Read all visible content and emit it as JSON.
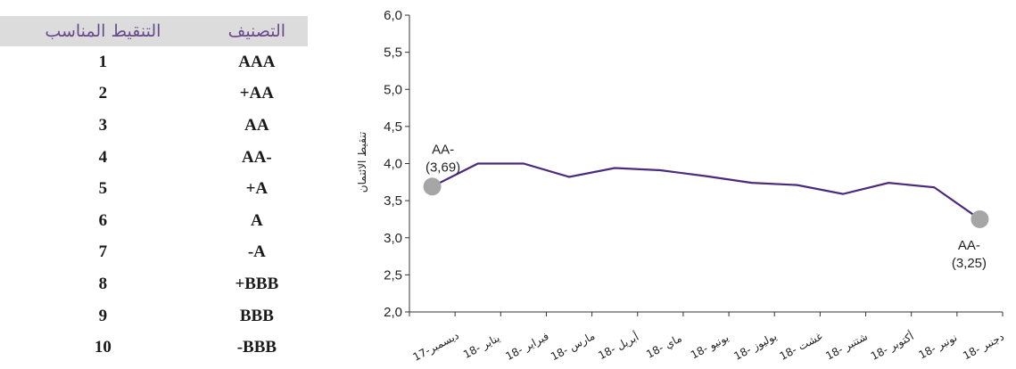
{
  "rating_table": {
    "headers": [
      "التنقيط المناسب",
      "التصنيف"
    ],
    "rows": [
      {
        "score": "1",
        "rating": "AAA"
      },
      {
        "score": "2",
        "rating": "+AA"
      },
      {
        "score": "3",
        "rating": "AA"
      },
      {
        "score": "4",
        "rating": "AA-"
      },
      {
        "score": "5",
        "rating": "+A"
      },
      {
        "score": "6",
        "rating": "A"
      },
      {
        "score": "7",
        "rating": "-A"
      },
      {
        "score": "8",
        "rating": "+BBB"
      },
      {
        "score": "9",
        "rating": "BBB"
      },
      {
        "score": "10",
        "rating": "-BBB"
      }
    ]
  },
  "chart_data": {
    "type": "line",
    "ylabel": "تنقيط الائتمان",
    "ylim": [
      2.0,
      6.0
    ],
    "yticks": [
      "2,0",
      "2,5",
      "3,0",
      "3,5",
      "4,0",
      "4,5",
      "5,0",
      "5,5",
      "6,0"
    ],
    "categories": [
      "ديسمبر-17",
      "يناير -18",
      "فبراير -18",
      "مارس -18",
      "أبريل -18",
      "ماي -18",
      "يونيو -18",
      "يوليوز -18",
      "غشت -18",
      "شتنبر -18",
      "أكتوبر -18",
      "نونبر -18",
      "دجنبر -18"
    ],
    "series": [
      {
        "values": [
          3.69,
          4.0,
          4.0,
          3.82,
          3.94,
          3.91,
          3.83,
          3.74,
          3.71,
          3.59,
          3.74,
          3.68,
          3.25
        ]
      }
    ],
    "line_color": "#4b2a7c",
    "marker_color": "#a6a6a6",
    "annotations": [
      {
        "label": "AA-",
        "value_text": "(3,69)",
        "index": 0
      },
      {
        "label": "AA-",
        "value_text": "(3,25)",
        "index": 12
      }
    ]
  }
}
